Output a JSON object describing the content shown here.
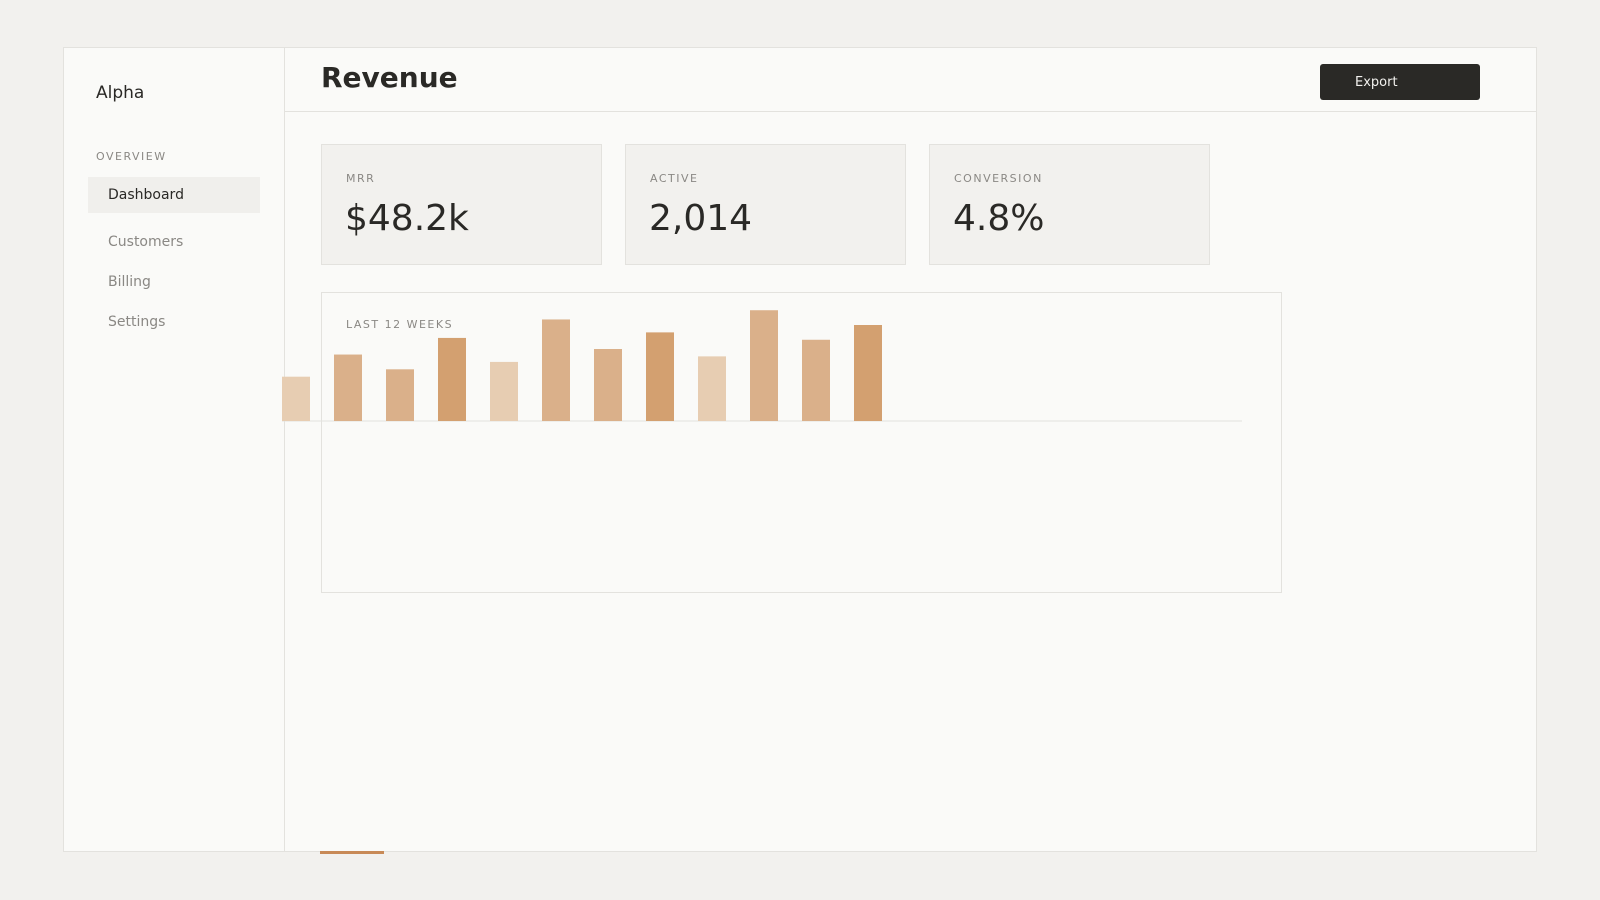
{
  "sidebar": {
    "brand": "Alpha",
    "section_label": "OVERVIEW",
    "items": [
      {
        "label": "Dashboard",
        "active": true
      },
      {
        "label": "Customers",
        "active": false
      },
      {
        "label": "Billing",
        "active": false
      },
      {
        "label": "Settings",
        "active": false
      }
    ]
  },
  "header": {
    "title": "Revenue",
    "export_label": "Export"
  },
  "kpis": [
    {
      "label": "MRR",
      "value": "$48.2k"
    },
    {
      "label": "ACTIVE",
      "value": "2,014"
    },
    {
      "label": "CONVERSION",
      "value": "4.8%"
    }
  ],
  "chart_card": {
    "label": "LAST 12 WEEKS"
  },
  "colors": {
    "accent": "#c88a57",
    "bar_light": "#e7cdb2",
    "bar_mid": "#dab08a",
    "bar_dark": "#d3a070",
    "button_bg": "#2a2926"
  },
  "chart_data": {
    "type": "bar",
    "title": "LAST 12 WEEKS",
    "values": [
      48,
      72,
      56,
      90,
      64,
      110,
      78,
      96,
      70,
      120,
      88,
      104
    ],
    "shades": [
      "light",
      "mid",
      "mid",
      "dark",
      "light",
      "mid",
      "mid",
      "dark",
      "light",
      "mid",
      "mid",
      "dark"
    ],
    "ylim": [
      0,
      130
    ],
    "grid": false,
    "legend": "none"
  }
}
